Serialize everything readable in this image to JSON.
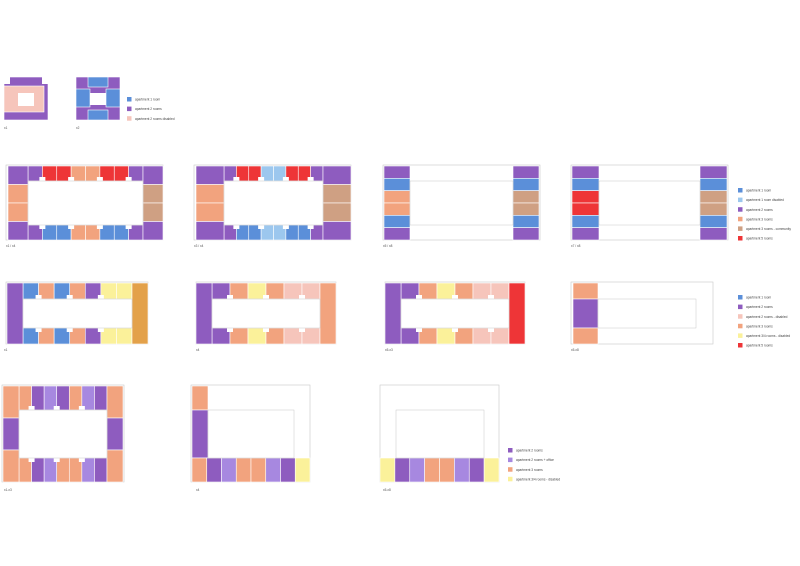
{
  "colors": {
    "apt1": "#5b8fd9",
    "apt1d": "#9cc7ee",
    "apt2": "#8e5cbf",
    "apt2o": "#a788e0",
    "apt2d": "#f6c5bb",
    "apt3": "#f2a37e",
    "apt3c": "#cfa083",
    "apt3_4d": "#fbf19a",
    "apt4": "#e3a14a",
    "apt5": "#ee3537",
    "outline": "#c8c8c8",
    "hall": "#ffffff"
  },
  "legends": [
    {
      "items": [
        {
          "color": "apt1",
          "label": "apartment 1 room"
        },
        {
          "color": "apt2",
          "label": "apartment 2 rooms"
        },
        {
          "color": "apt2d",
          "label": "apartment 2 rooms disabled"
        }
      ]
    },
    {
      "items": [
        {
          "color": "apt1",
          "label": "apartment 1 room"
        },
        {
          "color": "apt1d",
          "label": "apartment 1 room disabled"
        },
        {
          "color": "apt2",
          "label": "apartment 2 rooms"
        },
        {
          "color": "apt3",
          "label": "apartment 3 rooms"
        },
        {
          "color": "apt3c",
          "label": "apartment 3 rooms - community"
        },
        {
          "color": "apt5",
          "label": "apartment 5 rooms"
        }
      ]
    },
    {
      "items": [
        {
          "color": "apt1",
          "label": "apartment 1 room"
        },
        {
          "color": "apt2",
          "label": "apartment 2 rooms"
        },
        {
          "color": "apt2d",
          "label": "apartment 2 rooms - disabled"
        },
        {
          "color": "apt3",
          "label": "apartment 3 rooms"
        },
        {
          "color": "apt3_4d",
          "label": "apartment 3/4 rooms - disabled"
        },
        {
          "color": "apt5",
          "label": "apartment 5 rooms"
        }
      ]
    },
    {
      "items": [
        {
          "color": "apt2",
          "label": "apartment 2 rooms"
        },
        {
          "color": "apt2o",
          "label": "apartment 2 rooms + office"
        },
        {
          "color": "apt3",
          "label": "apartment 3 rooms"
        },
        {
          "color": "apt3_4d",
          "label": "apartment 3/4 rooms - disabled"
        }
      ]
    }
  ],
  "plans": [
    {
      "caption": "x1"
    },
    {
      "caption": "x2"
    },
    {
      "caption": "x1 / x4"
    },
    {
      "caption": "x3 / x4"
    },
    {
      "caption": "x5 / x8"
    },
    {
      "caption": "x7 / x8"
    },
    {
      "caption": "x1"
    },
    {
      "caption": "x4"
    },
    {
      "caption": "x5-x3"
    },
    {
      "caption": "x5-x8"
    },
    {
      "caption": "x1-x3"
    },
    {
      "caption": "x4"
    },
    {
      "caption": "x5-x8"
    }
  ]
}
